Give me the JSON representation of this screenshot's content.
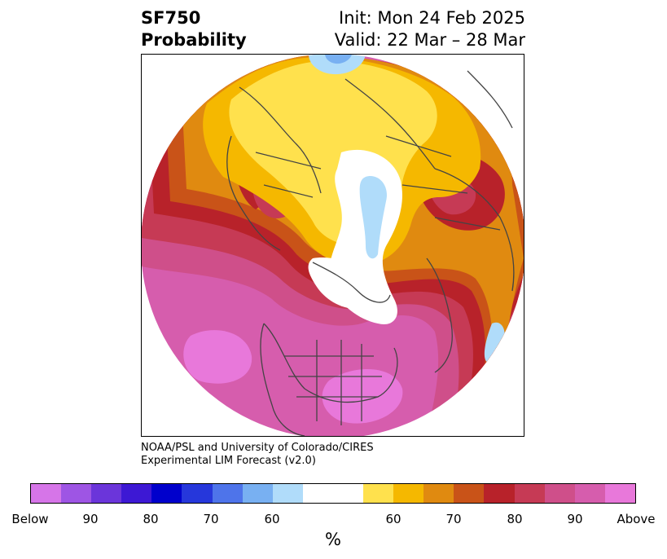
{
  "header": {
    "title_line1": "SF750",
    "title_line2": "Probability",
    "init": "Init: Mon 24 Feb 2025",
    "valid": "Valid: 22 Mar – 28 Mar"
  },
  "credit": {
    "line1": "NOAA/PSL and University of Colorado/CIRES",
    "line2": "Experimental LIM Forecast (v2.0)"
  },
  "colorbar": {
    "segments": [
      "#d675e8",
      "#9e55e4",
      "#6b35da",
      "#3d18d4",
      "#0000cc",
      "#2637db",
      "#4e74ea",
      "#78b0f2",
      "#b0dcfa",
      "#ffffff",
      "#ffe14d",
      "#f5b800",
      "#e08a10",
      "#c95318",
      "#b8222a",
      "#c63a55",
      "#cf4f8a",
      "#d65dad",
      "#e878da"
    ],
    "ticks": [
      "Below",
      "90",
      "80",
      "70",
      "60",
      "60",
      "70",
      "80",
      "90",
      "Above"
    ],
    "unit": "%"
  },
  "map": {
    "colors": {
      "above90": "#e878da",
      "p80": "#d65dad",
      "p70": "#cf4f8a",
      "p60": "#c63a55",
      "red": "#b8222a",
      "rust": "#c95318",
      "orange": "#e08a10",
      "gold": "#f5b800",
      "yellow": "#ffe14d",
      "lightblue": "#b0dcfa",
      "bluemid": "#78b0f2",
      "border": "#444444"
    }
  }
}
